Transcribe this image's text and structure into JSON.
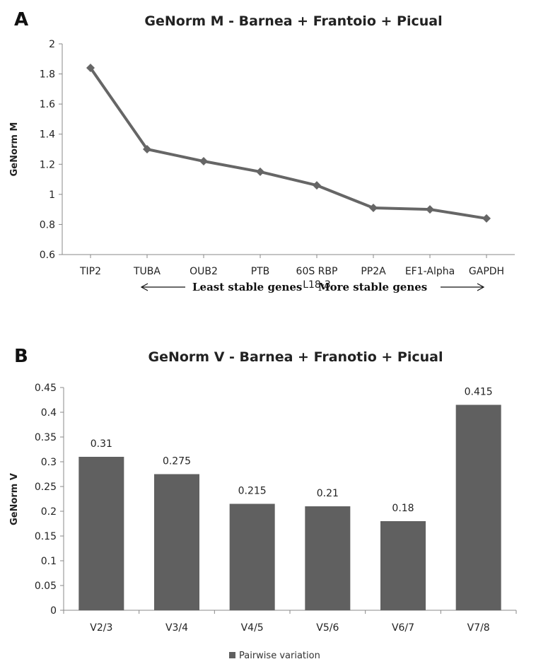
{
  "chart_data": [
    {
      "type": "line",
      "panel": "A",
      "title": "GeNorm M - Barnea + Frantoio + Picual",
      "xlabel": "",
      "ylabel": "GeNorm M",
      "categories": [
        "TIP2",
        "TUBA",
        "OUB2",
        "PTB",
        "60S RBP\nL18-3",
        "PP2A",
        "EF1-Alpha",
        "GAPDH"
      ],
      "series": [
        {
          "values": [
            1.84,
            1.3,
            1.22,
            1.15,
            1.06,
            0.91,
            0.9,
            0.84
          ]
        }
      ],
      "ylim": [
        0.6,
        2
      ],
      "yticks": [
        "0.6",
        "0.8",
        "1",
        "1.2",
        "1.4",
        "1.6",
        "1.8",
        "2"
      ],
      "annotation": {
        "left": "Least stable genes",
        "right": "More stable genes"
      },
      "grid": false,
      "color": "#666666"
    },
    {
      "type": "bar",
      "panel": "B",
      "title": "GeNorm V - Barnea + Franotio + Picual",
      "xlabel": "",
      "ylabel": "GeNorm V",
      "categories": [
        "V2/3",
        "V3/4",
        "V4/5",
        "V5/6",
        "V6/7",
        "V7/8"
      ],
      "series": [
        {
          "name": "Pairwise variation",
          "values": [
            0.31,
            0.275,
            0.215,
            0.21,
            0.18,
            0.415
          ]
        }
      ],
      "data_labels": [
        "0.31",
        "0.275",
        "0.215",
        "0.21",
        "0.18",
        "0.415"
      ],
      "ylim": [
        0,
        0.45
      ],
      "yticks": [
        "0",
        "0.05",
        "0.1",
        "0.15",
        "0.2",
        "0.25",
        "0.3",
        "0.35",
        "0.4",
        "0.45"
      ],
      "legend": {
        "position": "bottom",
        "label": "Pairwise variation"
      },
      "grid": false,
      "color": "#606060"
    }
  ]
}
